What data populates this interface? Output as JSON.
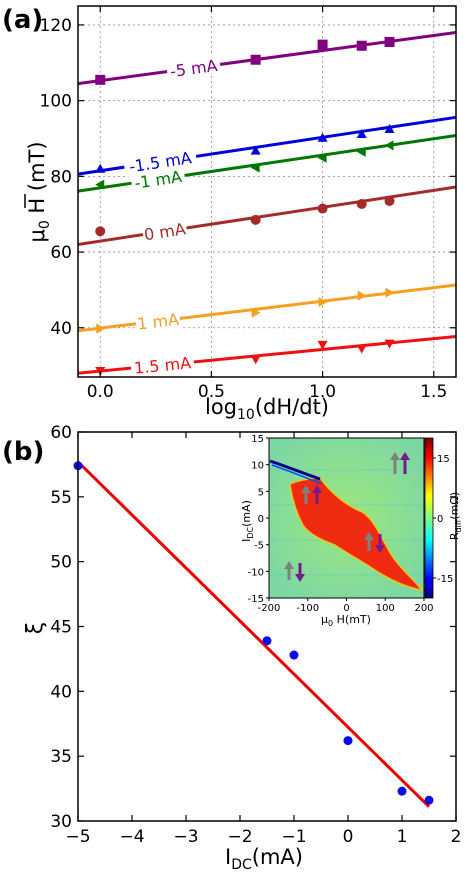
{
  "chart_data": [
    {
      "type": "scatter",
      "panel_label": "(a)",
      "xlabel": "log10(dH/dt)",
      "ylabel": "μ0 H (mT)",
      "xlim": [
        -0.1,
        1.6
      ],
      "ylim": [
        27,
        125
      ],
      "x_ticks": [
        0.0,
        0.5,
        1.0,
        1.5
      ],
      "x_tick_labels": [
        "0.0",
        "0.5",
        "1.0",
        "1.5"
      ],
      "y_ticks": [
        40,
        60,
        80,
        100,
        120
      ],
      "y_tick_labels": [
        "40",
        "60",
        "80",
        "100",
        "120"
      ],
      "series": [
        {
          "name": "-5 mA",
          "color": "#800080",
          "marker": "square",
          "x": [
            0.0,
            0.699,
            1.0,
            1.176,
            1.301
          ],
          "y": [
            105.5,
            110.8,
            114.8,
            114.5,
            115.5
          ],
          "fit": [
            [
              -0.1,
              104.5
            ],
            [
              1.6,
              118.0
            ]
          ]
        },
        {
          "name": "-1.5 mA",
          "color": "#0000dd",
          "marker": "triangle-up",
          "x": [
            0.0,
            0.699,
            1.0,
            1.176,
            1.301
          ],
          "y": [
            82.0,
            86.8,
            90.2,
            91.2,
            92.5
          ],
          "fit": [
            [
              -0.1,
              80.6
            ],
            [
              1.6,
              95.6
            ]
          ]
        },
        {
          "name": "-1 mA",
          "color": "#007700",
          "marker": "triangle-left",
          "x": [
            0.0,
            0.699,
            1.0,
            1.176,
            1.301
          ],
          "y": [
            77.8,
            82.3,
            84.9,
            86.5,
            88.2
          ],
          "fit": [
            [
              -0.1,
              76.1
            ],
            [
              1.6,
              90.8
            ]
          ]
        },
        {
          "name": "0 mA",
          "color": "#a52a2a",
          "marker": "circle",
          "x": [
            0.0,
            0.699,
            1.0,
            1.176,
            1.301
          ],
          "y": [
            65.5,
            68.5,
            71.5,
            72.7,
            73.5
          ],
          "fit": [
            [
              -0.1,
              62.0
            ],
            [
              1.6,
              77.2
            ]
          ]
        },
        {
          "name": "1 mA",
          "color": "#f5a020",
          "marker": "triangle-right",
          "x": [
            0.0,
            0.699,
            1.0,
            1.176,
            1.301
          ],
          "y": [
            39.8,
            44.0,
            46.8,
            48.5,
            49.3
          ],
          "fit": [
            [
              -0.1,
              39.2
            ],
            [
              1.6,
              51.3
            ]
          ]
        },
        {
          "name": "1.5 mA",
          "color": "#ee1111",
          "marker": "triangle-down",
          "x": [
            0.0,
            0.699,
            1.0,
            1.176,
            1.301
          ],
          "y": [
            28.6,
            31.7,
            35.5,
            34.5,
            35.8
          ],
          "fit": [
            [
              -0.1,
              28.0
            ],
            [
              1.6,
              37.7
            ]
          ]
        }
      ]
    },
    {
      "type": "scatter",
      "panel_label": "(b)",
      "xlabel": "IDC(mA)",
      "ylabel": "ξ",
      "xlim": [
        -5,
        2
      ],
      "ylim": [
        30,
        60
      ],
      "x_ticks": [
        -5,
        -4,
        -3,
        -2,
        -1,
        0,
        1,
        2
      ],
      "x_tick_labels": [
        "−5",
        "−4",
        "−3",
        "−2",
        "−1",
        "0",
        "1",
        "2"
      ],
      "y_ticks": [
        30,
        35,
        40,
        45,
        50,
        55,
        60
      ],
      "y_tick_labels": [
        "30",
        "35",
        "40",
        "45",
        "50",
        "55",
        "60"
      ],
      "series": [
        {
          "name": "",
          "color": "#0a0aee",
          "marker": "circle",
          "x": [
            -5.0,
            -1.5,
            -1.0,
            0.0,
            1.0,
            1.5
          ],
          "y": [
            57.4,
            43.9,
            42.8,
            36.2,
            32.3,
            31.6
          ],
          "fit": [
            [
              -5.0,
              57.7
            ],
            [
              1.5,
              31.1
            ]
          ]
        }
      ],
      "inset": {
        "type": "heatmap",
        "xlabel": "μ0 H(mT)",
        "ylabel": "IDC(mA)",
        "colorbar_label": "Rdiff(mΩ)",
        "xlim": [
          -200,
          200
        ],
        "ylim": [
          -15,
          15
        ],
        "x_tick_labels": [
          "-200",
          "-100",
          "0",
          "100",
          "200"
        ],
        "y_tick_labels": [
          "15",
          "10",
          "5",
          "0",
          "-5",
          "-10",
          "-15"
        ],
        "colorbar_ticks": [
          "15",
          "0",
          "-15"
        ],
        "colorbar_range": [
          -20,
          20
        ]
      }
    }
  ]
}
